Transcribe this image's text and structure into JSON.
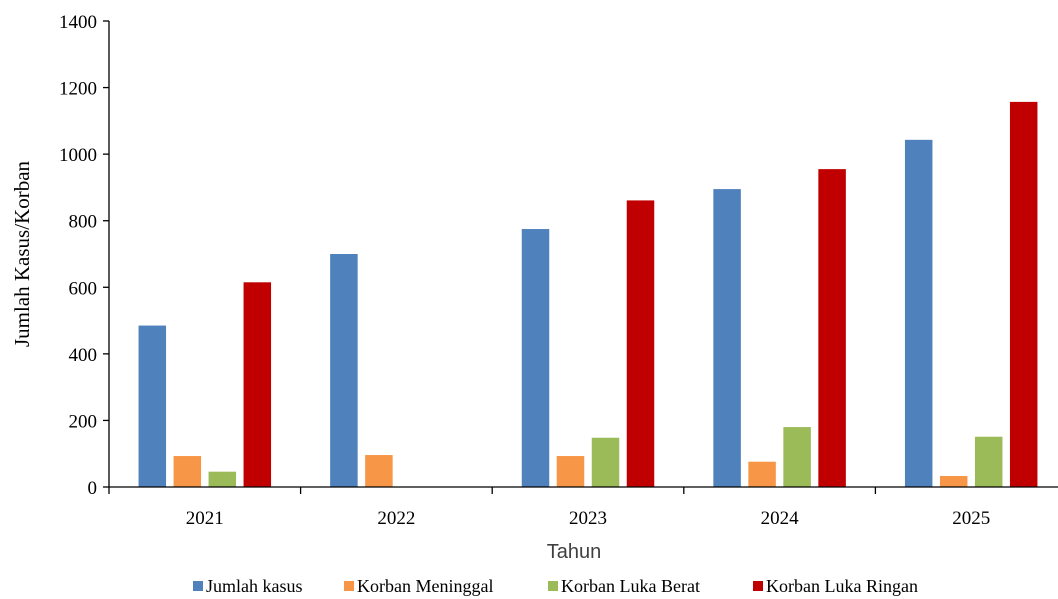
{
  "chart_data": {
    "type": "bar",
    "xlabel": "Tahun",
    "ylabel": "Jumlah Kasus/Korban",
    "categories": [
      "2021",
      "2022",
      "2023",
      "2024",
      "2025"
    ],
    "ylim": [
      0,
      1400
    ],
    "yticks": [
      0,
      200,
      400,
      600,
      800,
      1000,
      1200,
      1400
    ],
    "yticks_labels": [
      "0",
      "200",
      "400",
      "600",
      "800",
      "1000",
      "1200",
      "1400"
    ],
    "grid": false,
    "legend_position": "bottom",
    "series": [
      {
        "name": "Jumlah kasus",
        "color": "#4f81bd",
        "values": [
          485,
          700,
          775,
          895,
          1043
        ]
      },
      {
        "name": "Korban Meninggal",
        "color": "#f79646",
        "values": [
          93,
          96,
          93,
          76,
          33
        ]
      },
      {
        "name": "Korban Luka Berat",
        "color": "#9bbb59",
        "values": [
          46,
          null,
          148,
          180,
          151
        ]
      },
      {
        "name": "Korban Luka Ringan",
        "color": "#c00000",
        "values": [
          615,
          null,
          861,
          955,
          1157
        ]
      }
    ]
  }
}
